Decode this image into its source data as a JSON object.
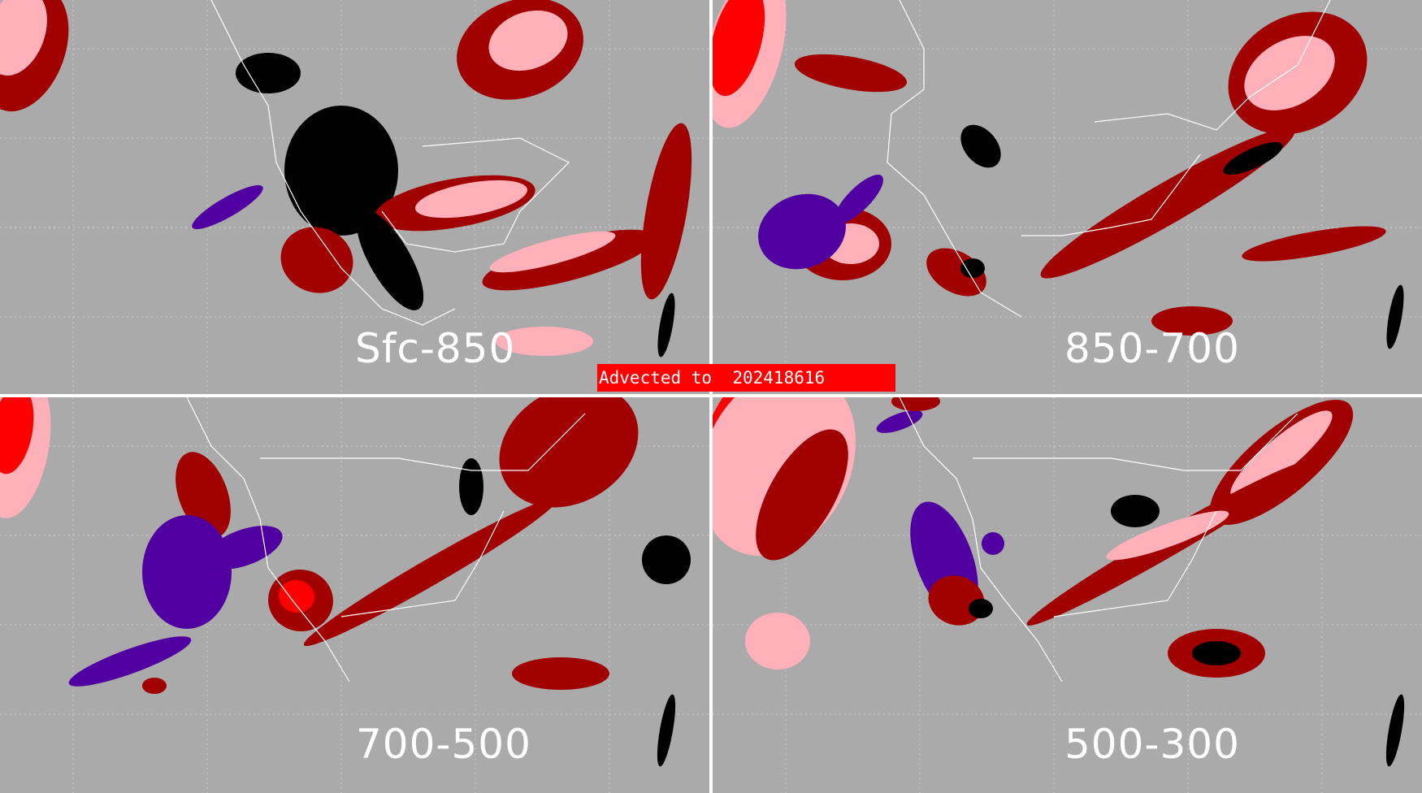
{
  "panels": [
    {
      "id": "tl",
      "label": "Sfc-850"
    },
    {
      "id": "tr",
      "label": "850-700"
    },
    {
      "id": "bl",
      "label": "700-500"
    },
    {
      "id": "br",
      "label": "500-300"
    }
  ],
  "advected_label": "Advected to  202418616",
  "colors": {
    "background": "#aaaaaa",
    "dark_red": "#a00000",
    "red": "#ff0000",
    "pink": "#ffb0b8",
    "black": "#000000",
    "purple": "#5000a0",
    "borders": "#ffffff"
  }
}
